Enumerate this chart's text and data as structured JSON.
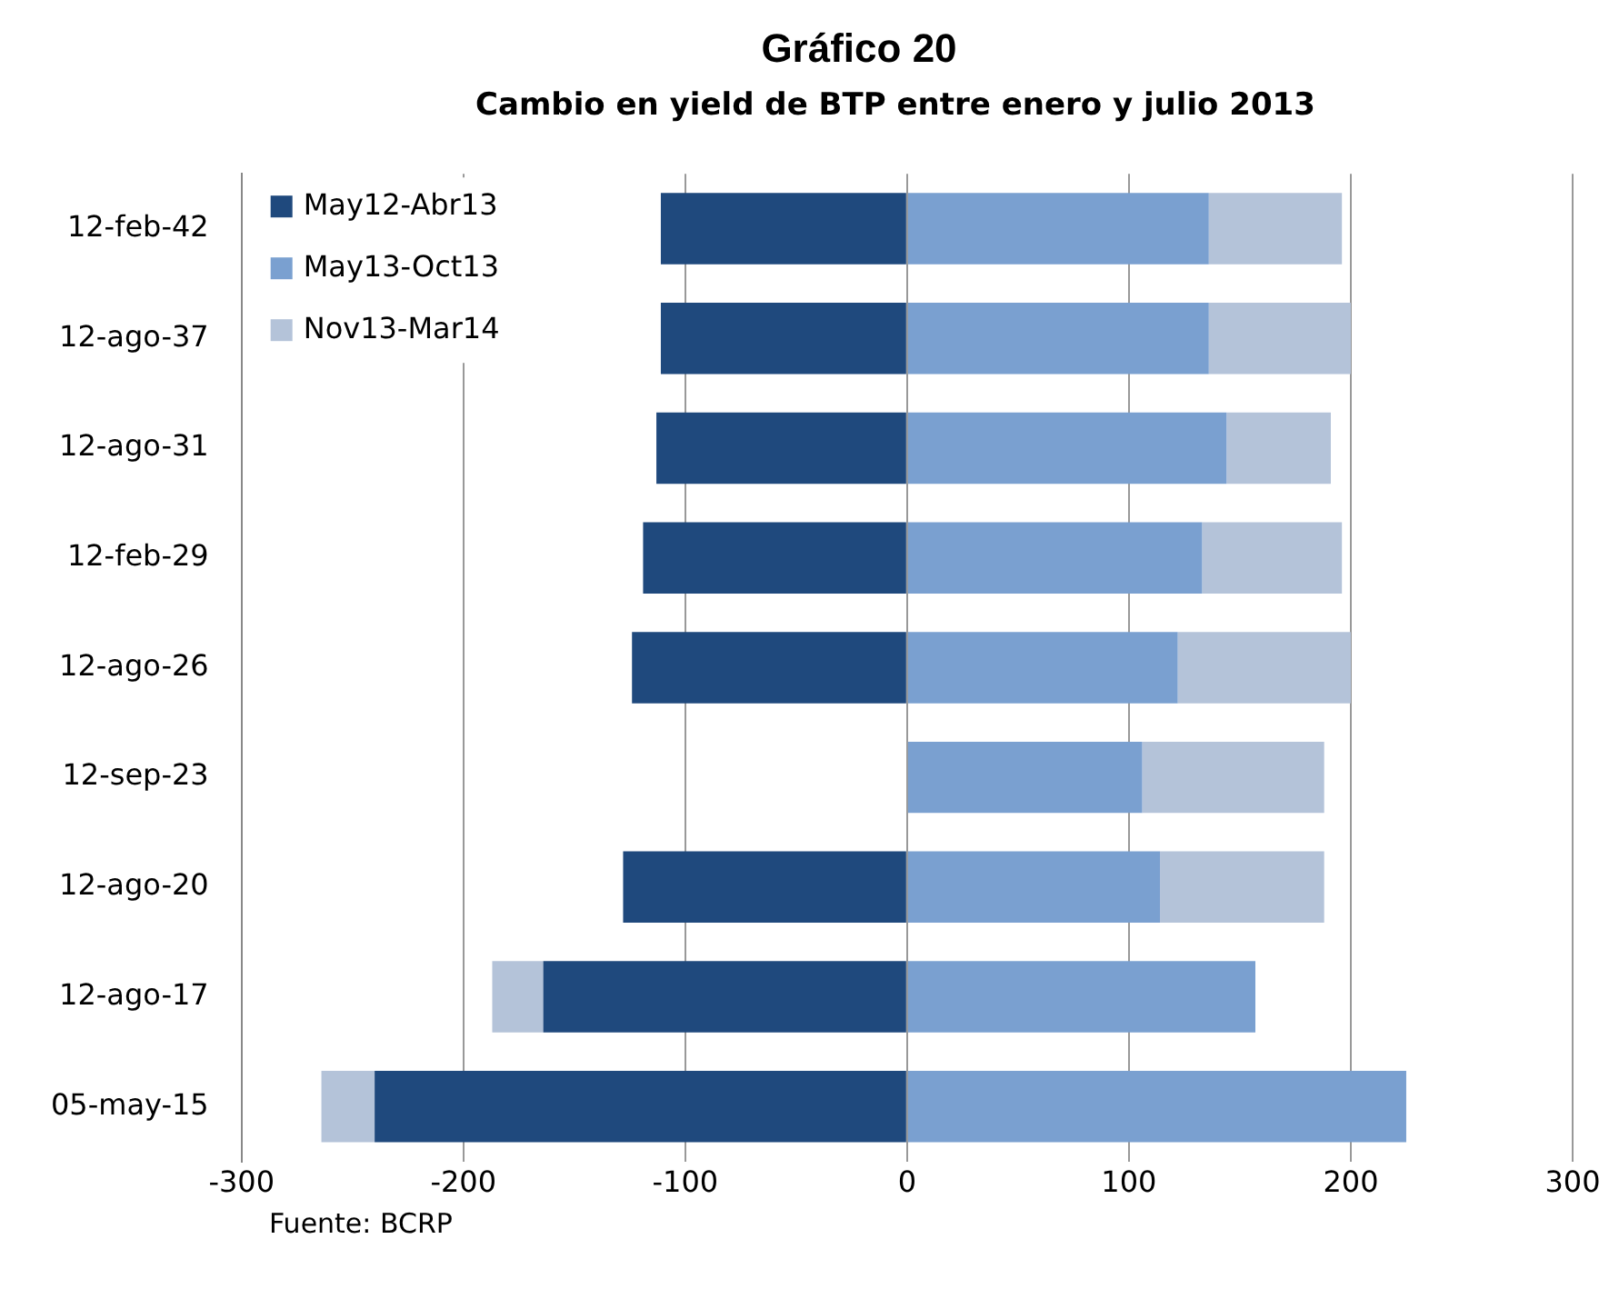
{
  "chart_data": {
    "type": "bar",
    "orientation": "horizontal",
    "stacked": true,
    "title": "Gráfico 20",
    "subtitle": "Cambio en yield de BTP entre enero y julio 2013",
    "categories": [
      "12-feb-42",
      "12-ago-37",
      "12-ago-31",
      "12-feb-29",
      "12-ago-26",
      "12-sep-23",
      "12-ago-20",
      "12-ago-17",
      "05-may-15"
    ],
    "series": [
      {
        "name": "May12-Abr13",
        "color": "#1f497d",
        "values": [
          -111,
          -111,
          -113,
          -119,
          -124,
          0,
          -128,
          -164,
          -240
        ]
      },
      {
        "name": "May13-Oct13",
        "color": "#7aa0d0",
        "values": [
          136,
          136,
          144,
          133,
          122,
          106,
          114,
          157,
          225
        ]
      },
      {
        "name": "Nov13-Mar14",
        "color": "#b4c3d9",
        "values": [
          60,
          64,
          47,
          63,
          78,
          82,
          74,
          -23,
          -24
        ]
      }
    ],
    "xlim": [
      -300,
      300
    ],
    "xticks": [
      -300,
      -200,
      -100,
      0,
      100,
      200,
      300
    ],
    "grid": "x",
    "legend": "top left",
    "annotations": [
      "Fuente: BCRP"
    ]
  }
}
